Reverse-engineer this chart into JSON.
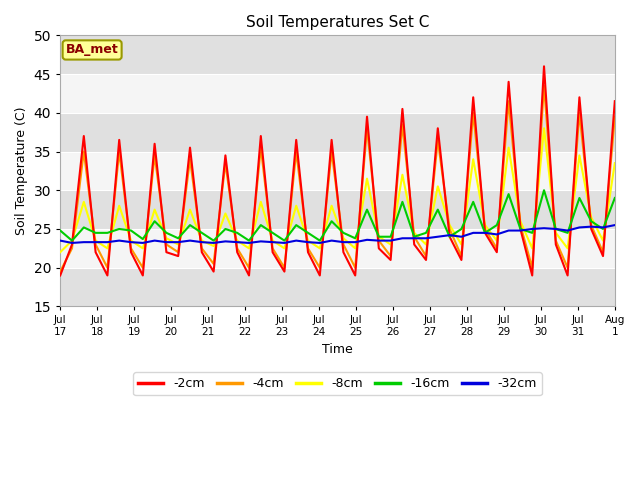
{
  "title": "Soil Temperatures Set C",
  "xlabel": "Time",
  "ylabel": "Soil Temperature (C)",
  "ylim": [
    15,
    50
  ],
  "yticks": [
    15,
    20,
    25,
    30,
    35,
    40,
    45,
    50
  ],
  "legend_labels": [
    "-2cm",
    "-4cm",
    "-8cm",
    "-16cm",
    "-32cm"
  ],
  "legend_colors": [
    "#ff0000",
    "#ff9900",
    "#ffff00",
    "#00cc00",
    "#0000dd"
  ],
  "annotation_text": "BA_met",
  "annotation_color": "#8B0000",
  "annotation_bg": "#ffff99",
  "annotation_border": "#999900",
  "tick_labels": [
    "Jul\n17",
    "Jul\n18",
    "Jul\n19",
    "Jul\n20",
    "Jul\n21",
    "Jul\n22",
    "Jul\n23",
    "Jul\n24",
    "Jul\n25",
    "Jul\n26",
    "Jul\n27",
    "Jul\n28",
    "Jul\n29",
    "Jul\n30",
    "Jul\n31",
    "Aug\n1"
  ],
  "cm2_data": [
    19.0,
    23.0,
    37.0,
    22.0,
    19.0,
    36.5,
    22.0,
    19.0,
    36.0,
    22.0,
    21.5,
    35.5,
    22.0,
    19.5,
    34.5,
    22.0,
    19.0,
    37.0,
    22.0,
    19.5,
    36.5,
    22.0,
    19.0,
    36.5,
    22.0,
    19.0,
    39.5,
    22.5,
    21.0,
    40.5,
    23.0,
    21.0,
    38.0,
    24.0,
    21.0,
    42.0,
    24.5,
    22.0,
    44.0,
    25.0,
    19.0,
    46.0,
    23.0,
    19.0,
    42.0,
    25.0,
    21.5,
    41.5
  ],
  "cm4_data": [
    19.5,
    22.5,
    35.0,
    23.0,
    20.0,
    35.0,
    22.5,
    20.0,
    34.5,
    23.0,
    22.0,
    34.0,
    22.5,
    20.5,
    33.5,
    22.5,
    20.0,
    35.5,
    22.5,
    20.0,
    35.0,
    22.5,
    20.0,
    35.0,
    23.0,
    20.0,
    38.0,
    23.5,
    21.5,
    38.5,
    24.0,
    21.5,
    36.5,
    25.0,
    21.5,
    40.0,
    25.0,
    22.5,
    41.5,
    25.5,
    20.0,
    43.5,
    23.5,
    20.0,
    40.0,
    25.5,
    22.0,
    39.5
  ],
  "cm8_data": [
    22.0,
    23.5,
    28.5,
    23.5,
    22.5,
    28.0,
    23.5,
    22.5,
    27.5,
    23.8,
    23.0,
    27.5,
    23.5,
    22.8,
    27.0,
    23.5,
    22.5,
    28.5,
    23.5,
    22.5,
    28.0,
    23.5,
    22.5,
    28.0,
    23.8,
    22.5,
    31.5,
    24.0,
    23.0,
    32.0,
    24.5,
    23.0,
    30.5,
    25.5,
    23.0,
    34.0,
    25.5,
    23.5,
    35.5,
    26.0,
    22.5,
    38.0,
    24.5,
    22.5,
    34.5,
    26.5,
    23.5,
    33.5
  ],
  "cm16_data": [
    24.8,
    23.5,
    25.2,
    24.5,
    24.5,
    25.0,
    24.8,
    23.7,
    26.0,
    24.5,
    23.8,
    25.5,
    24.5,
    23.5,
    25.0,
    24.5,
    23.5,
    25.5,
    24.5,
    23.5,
    25.5,
    24.5,
    23.5,
    26.0,
    24.5,
    23.8,
    27.5,
    24.0,
    24.0,
    28.5,
    24.0,
    24.5,
    27.5,
    24.0,
    25.0,
    28.5,
    24.5,
    25.5,
    29.5,
    25.0,
    24.5,
    30.0,
    25.0,
    24.5,
    29.0,
    26.0,
    25.0,
    29.0
  ],
  "cm32_data": [
    23.5,
    23.2,
    23.3,
    23.3,
    23.3,
    23.5,
    23.3,
    23.2,
    23.5,
    23.3,
    23.3,
    23.5,
    23.3,
    23.2,
    23.4,
    23.3,
    23.2,
    23.4,
    23.3,
    23.2,
    23.5,
    23.3,
    23.2,
    23.5,
    23.3,
    23.3,
    23.6,
    23.5,
    23.5,
    23.8,
    23.8,
    23.8,
    24.0,
    24.2,
    24.0,
    24.5,
    24.5,
    24.3,
    24.8,
    24.8,
    25.0,
    25.1,
    25.0,
    24.8,
    25.2,
    25.3,
    25.2,
    25.5
  ]
}
